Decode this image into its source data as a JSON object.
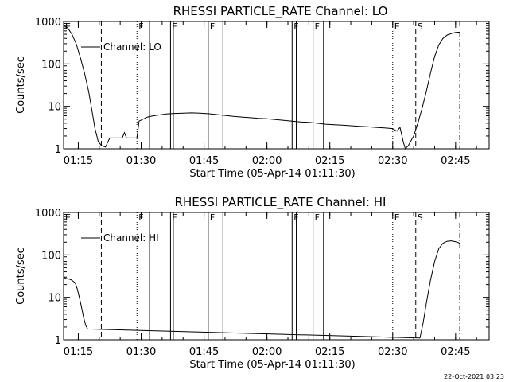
{
  "footer_timestamp": "22-Oct-2021 03:23",
  "chart_data": [
    {
      "type": "line",
      "title": "RHESSI PARTICLE_RATE Channel: LO",
      "xlabel": "Start Time (05-Apr-14 01:11:30)",
      "ylabel": "Counts/sec",
      "yscale": "log",
      "xlim": [
        "01:11:30",
        "02:53:00"
      ],
      "ylim": [
        1,
        1000
      ],
      "xticks": [
        "01:15",
        "01:30",
        "01:45",
        "02:00",
        "02:15",
        "02:30",
        "02:45"
      ],
      "yticks": [
        "1",
        "10",
        "100",
        "1000"
      ],
      "legend": "top-left",
      "series": [
        {
          "name": "Channel: LO",
          "points": [
            [
              "01:11:30",
              800
            ],
            [
              "01:12:30",
              700
            ],
            [
              "01:13:30",
              500
            ],
            [
              "01:14:30",
              300
            ],
            [
              "01:15:30",
              140
            ],
            [
              "01:16:30",
              60
            ],
            [
              "01:17:30",
              22
            ],
            [
              "01:18:15",
              8
            ],
            [
              "01:19:00",
              3
            ],
            [
              "01:19:45",
              1.5
            ],
            [
              "01:20:30",
              1.2
            ],
            [
              "01:21:30",
              1.1
            ],
            [
              "01:22:30",
              1.8
            ],
            [
              "01:24:00",
              1.8
            ],
            [
              "01:25:30",
              1.8
            ],
            [
              "01:26:00",
              2.4
            ],
            [
              "01:26:30",
              1.8
            ],
            [
              "01:28:00",
              1.8
            ],
            [
              "01:29:00",
              1.8
            ],
            [
              "01:29:30",
              4.5
            ],
            [
              "01:30:30",
              5.0
            ],
            [
              "01:31:30",
              5.6
            ],
            [
              "01:33:00",
              6.0
            ],
            [
              "01:34:30",
              6.3
            ],
            [
              "01:36:00",
              6.6
            ],
            [
              "01:38:00",
              6.8
            ],
            [
              "01:40:00",
              6.9
            ],
            [
              "01:42:00",
              7.0
            ],
            [
              "01:44:00",
              6.9
            ],
            [
              "01:46:00",
              6.7
            ],
            [
              "01:48:00",
              6.4
            ],
            [
              "01:50:00",
              6.1
            ],
            [
              "01:52:00",
              5.8
            ],
            [
              "01:54:00",
              5.6
            ],
            [
              "01:56:00",
              5.4
            ],
            [
              "01:58:00",
              5.2
            ],
            [
              "02:00:00",
              5.1
            ],
            [
              "02:02:00",
              4.9
            ],
            [
              "02:04:00",
              4.7
            ],
            [
              "02:06:00",
              4.5
            ],
            [
              "02:08:00",
              4.3
            ],
            [
              "02:10:00",
              4.2
            ],
            [
              "02:12:00",
              4.0
            ],
            [
              "02:14:00",
              3.8
            ],
            [
              "02:16:00",
              3.7
            ],
            [
              "02:18:00",
              3.6
            ],
            [
              "02:20:00",
              3.5
            ],
            [
              "02:22:00",
              3.4
            ],
            [
              "02:24:00",
              3.3
            ],
            [
              "02:26:00",
              3.2
            ],
            [
              "02:28:00",
              3.1
            ],
            [
              "02:30:00",
              3.0
            ],
            [
              "02:31:00",
              2.6
            ],
            [
              "02:31:45",
              3.2
            ],
            [
              "02:32:30",
              1.5
            ],
            [
              "02:33:00",
              1.0
            ],
            [
              "02:33:45",
              1.2
            ],
            [
              "02:35:00",
              2.0
            ],
            [
              "02:36:00",
              4.0
            ],
            [
              "02:37:00",
              9.0
            ],
            [
              "02:38:00",
              22
            ],
            [
              "02:39:00",
              60
            ],
            [
              "02:40:00",
              150
            ],
            [
              "02:41:00",
              280
            ],
            [
              "02:42:00",
              400
            ],
            [
              "02:43:00",
              480
            ],
            [
              "02:44:00",
              520
            ],
            [
              "02:45:00",
              550
            ],
            [
              "02:46:00",
              560
            ]
          ]
        }
      ],
      "markers": [
        {
          "time": "01:11:30",
          "label": "E",
          "style": "dotted"
        },
        {
          "time": "01:20:30",
          "label": "",
          "style": "dashed"
        },
        {
          "time": "01:29:00",
          "label": "F",
          "style": "dotted"
        },
        {
          "time": "01:32:00",
          "label": "",
          "style": "solid"
        },
        {
          "time": "01:37:00",
          "label": "F",
          "style": "solid"
        },
        {
          "time": "01:37:40",
          "label": "",
          "style": "solid"
        },
        {
          "time": "01:46:00",
          "label": "F",
          "style": "solid"
        },
        {
          "time": "01:49:30",
          "label": "",
          "style": "solid"
        },
        {
          "time": "02:06:00",
          "label": "F",
          "style": "solid"
        },
        {
          "time": "02:07:00",
          "label": "",
          "style": "solid"
        },
        {
          "time": "02:11:00",
          "label": "F",
          "style": "solid"
        },
        {
          "time": "02:13:30",
          "label": "",
          "style": "solid"
        },
        {
          "time": "02:30:00",
          "label": "E",
          "style": "dotted"
        },
        {
          "time": "02:35:30",
          "label": "S",
          "style": "dashed"
        },
        {
          "time": "02:46:00",
          "label": "",
          "style": "dashdot"
        }
      ]
    },
    {
      "type": "line",
      "title": "RHESSI PARTICLE_RATE Channel: HI",
      "xlabel": "Start Time (05-Apr-14 01:11:30)",
      "ylabel": "Counts/sec",
      "yscale": "log",
      "xlim": [
        "01:11:30",
        "02:53:00"
      ],
      "ylim": [
        1,
        1000
      ],
      "xticks": [
        "01:15",
        "01:30",
        "01:45",
        "02:00",
        "02:15",
        "02:30",
        "02:45"
      ],
      "yticks": [
        "1",
        "10",
        "100",
        "1000"
      ],
      "legend": "top-left",
      "series": [
        {
          "name": "Channel: HI",
          "points": [
            [
              "01:11:30",
              30
            ],
            [
              "01:12:00",
              28
            ],
            [
              "01:12:45",
              27
            ],
            [
              "01:13:15",
              26
            ],
            [
              "01:13:45",
              24
            ],
            [
              "01:14:15",
              22
            ],
            [
              "01:14:45",
              16
            ],
            [
              "01:15:15",
              10
            ],
            [
              "01:15:45",
              6
            ],
            [
              "01:16:15",
              3.5
            ],
            [
              "01:16:45",
              2.2
            ],
            [
              "01:17:15",
              1.8
            ],
            [
              "02:36:30",
              1.1
            ],
            [
              "02:37:15",
              2.5
            ],
            [
              "02:38:00",
              7
            ],
            [
              "02:39:00",
              25
            ],
            [
              "02:40:00",
              70
            ],
            [
              "02:41:00",
              140
            ],
            [
              "02:42:00",
              190
            ],
            [
              "02:43:00",
              210
            ],
            [
              "02:44:00",
              215
            ],
            [
              "02:45:00",
              205
            ],
            [
              "02:46:00",
              190
            ]
          ]
        }
      ],
      "markers": [
        {
          "time": "01:11:30",
          "label": "E",
          "style": "dotted"
        },
        {
          "time": "01:20:30",
          "label": "",
          "style": "dashed"
        },
        {
          "time": "01:29:00",
          "label": "F",
          "style": "dotted"
        },
        {
          "time": "01:32:00",
          "label": "",
          "style": "solid"
        },
        {
          "time": "01:37:00",
          "label": "F",
          "style": "solid"
        },
        {
          "time": "01:37:40",
          "label": "",
          "style": "solid"
        },
        {
          "time": "01:46:00",
          "label": "F",
          "style": "solid"
        },
        {
          "time": "01:49:30",
          "label": "",
          "style": "solid"
        },
        {
          "time": "02:06:00",
          "label": "F",
          "style": "solid"
        },
        {
          "time": "02:07:00",
          "label": "",
          "style": "solid"
        },
        {
          "time": "02:11:00",
          "label": "F",
          "style": "solid"
        },
        {
          "time": "02:13:30",
          "label": "",
          "style": "solid"
        },
        {
          "time": "02:30:00",
          "label": "E",
          "style": "dotted"
        },
        {
          "time": "02:35:30",
          "label": "S",
          "style": "dashed"
        },
        {
          "time": "02:46:00",
          "label": "",
          "style": "dashdot"
        }
      ]
    }
  ]
}
